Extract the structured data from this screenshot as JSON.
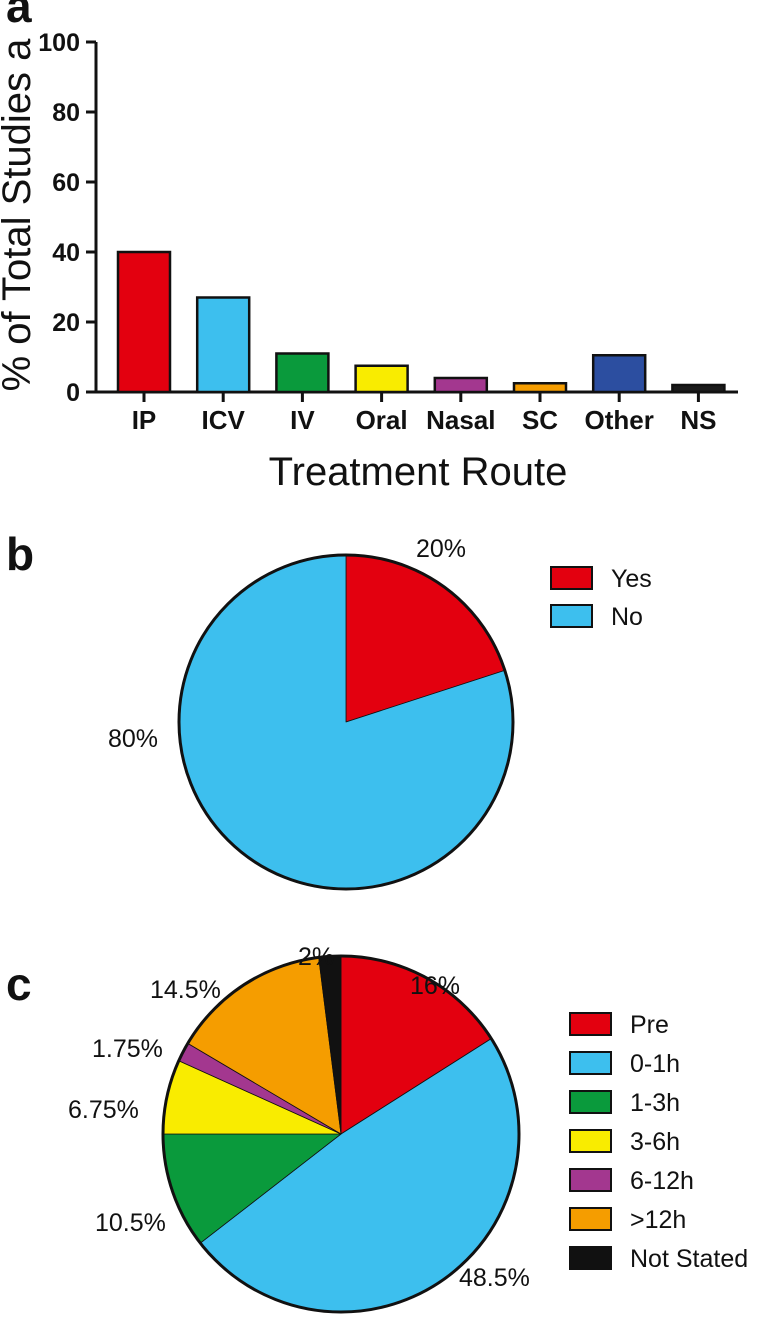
{
  "chart_data": [
    {
      "panel": "a",
      "type": "bar",
      "title": "",
      "xlabel": "Treatment Route",
      "ylabel": "% of Total Studies a",
      "ylim": [
        0,
        100
      ],
      "yticks": [
        "0",
        "20",
        "40",
        "60",
        "80",
        "100"
      ],
      "categories": [
        "IP",
        "ICV",
        "IV",
        "Oral",
        "Nasal",
        "SC",
        "Other",
        "NS"
      ],
      "values": [
        40,
        27,
        11,
        7.5,
        4,
        2.5,
        10.5,
        2
      ],
      "colors": [
        "#e3000f",
        "#3dbfee",
        "#0a9a3c",
        "#f9ec00",
        "#a3378f",
        "#f59d00",
        "#2c4ea0",
        "#1a1a1a"
      ]
    },
    {
      "panel": "b",
      "type": "pie",
      "labels": [
        "Yes",
        "No"
      ],
      "values": [
        20,
        80
      ],
      "value_labels": [
        "20%",
        "80%"
      ],
      "colors": [
        "#e3000f",
        "#3dbfee"
      ],
      "legend": "right"
    },
    {
      "panel": "c",
      "type": "pie",
      "labels": [
        "Pre",
        "0-1h",
        "1-3h",
        "3-6h",
        "6-12h",
        ">12h",
        "Not Stated"
      ],
      "values": [
        16,
        48.5,
        10.5,
        6.75,
        1.75,
        14.5,
        2
      ],
      "value_labels": [
        "16%",
        "48.5%",
        "10.5%",
        "6.75%",
        "1.75%",
        "14.5%",
        "2%"
      ],
      "colors": [
        "#e3000f",
        "#3dbfee",
        "#0a9a3c",
        "#f9ec00",
        "#a3378f",
        "#f59d00",
        "#111111"
      ],
      "legend": "right"
    }
  ]
}
